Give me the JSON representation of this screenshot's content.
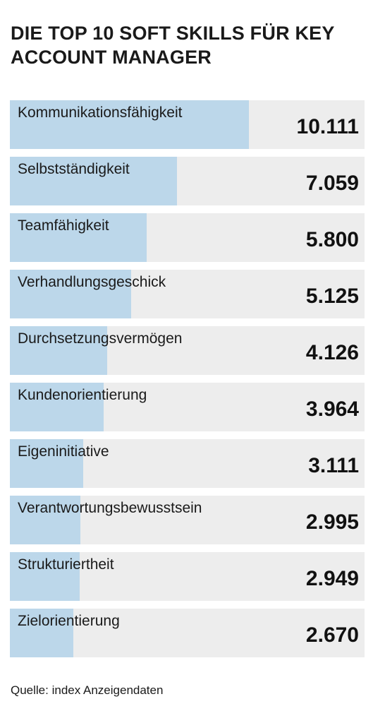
{
  "title": "DIE TOP 10 SOFT SKILLS FÜR KEY ACCOUNT MANAGER",
  "source": "Quelle: index Anzeigendaten",
  "colors": {
    "bar": "#bcd7ea",
    "track": "#ededed"
  },
  "chart_data": {
    "type": "bar",
    "orientation": "horizontal",
    "categories": [
      "Kommunikationsfähigkeit",
      "Selbstständigkeit",
      "Teamfähigkeit",
      "Verhandlungsgeschick",
      "Durchsetzungsvermögen",
      "Kundenorientierung",
      "Eigeninitiative",
      "Verantwortungsbewusstsein",
      "Strukturiertheit",
      "Zielorientierung"
    ],
    "values": [
      10111,
      7059,
      5800,
      5125,
      4126,
      3964,
      3111,
      2995,
      2949,
      2670
    ],
    "value_labels": [
      "10.111",
      "7.059",
      "5.800",
      "5.125",
      "4.126",
      "3.964",
      "3.111",
      "2.995",
      "2.949",
      "2.670"
    ],
    "xlim": [
      0,
      15000
    ]
  }
}
